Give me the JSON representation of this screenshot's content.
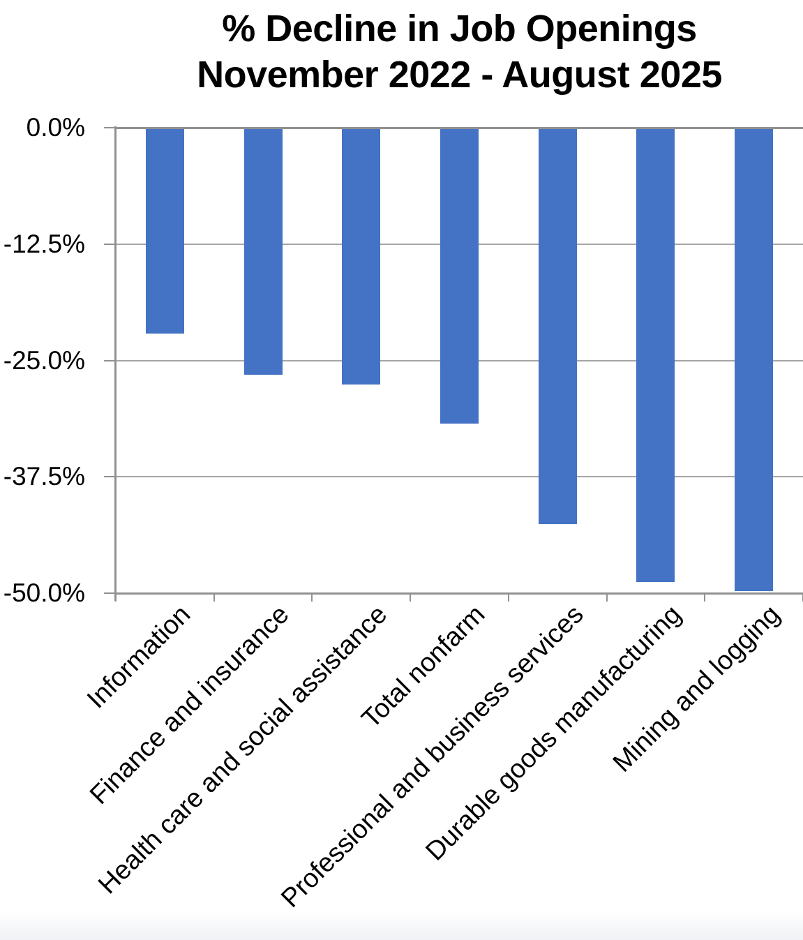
{
  "chart_data": {
    "type": "bar",
    "title": "% Decline in Job Openings",
    "subtitle": "November 2022 - August 2025",
    "categories": [
      "Information",
      "Finance and insurance",
      "Health care and social assistance",
      "Total nonfarm",
      "Professional and business services",
      "Durable goods manufacturing",
      "Mining and logging"
    ],
    "values": [
      -22.1,
      -26.5,
      -27.6,
      -31.8,
      -42.6,
      -48.8,
      -49.8
    ],
    "value_unit": "percent",
    "xlabel": "",
    "ylabel": "",
    "ylim": [
      -50,
      0
    ],
    "ytick_labels": [
      "0.0%",
      "-12.5%",
      "-25.0%",
      "-37.5%",
      "-50.0%"
    ],
    "ytick_values": [
      0,
      -12.5,
      -25,
      -37.5,
      -50
    ],
    "grid": true,
    "legend": false,
    "x_label_rotation_deg": 45,
    "colors": {
      "bar": "#4472C4",
      "gridline": "#A6A6A6",
      "axis": "#919191",
      "text": "#000000",
      "background": "#FFFFFF"
    }
  }
}
